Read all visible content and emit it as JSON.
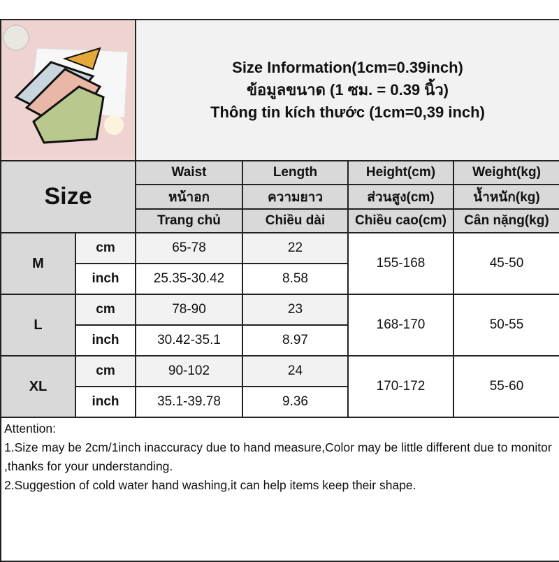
{
  "title": {
    "line1": "Size Information(1cm=0.39inch)",
    "line2": "ข้อมูลขนาด (1 ซม. = 0.39 นิ้ว)",
    "line3": "Thông tin kích thước (1cm=0,39 inch)"
  },
  "header": {
    "size_label": "Size",
    "columns": [
      {
        "en": "Waist",
        "th": "หน้าอก",
        "vi": "Trang chủ"
      },
      {
        "en": "Length",
        "th": "ความยาว",
        "vi": "Chiều dài"
      },
      {
        "en": "Height(cm)",
        "th": "ส่วนสูง(cm)",
        "vi": "Chiều cao(cm)"
      },
      {
        "en": "Weight(kg)",
        "th": "น้ำหนัก(kg)",
        "vi": "Cân nặng(kg)"
      }
    ]
  },
  "rows": [
    {
      "size": "M",
      "cm_label": "cm",
      "inch_label": "inch",
      "waist_cm": "65-78",
      "length_cm": "22",
      "waist_inch": "25.35-30.42",
      "length_inch": "8.58",
      "height": "155-168",
      "weight": "45-50"
    },
    {
      "size": "L",
      "cm_label": "cm",
      "inch_label": "inch",
      "waist_cm": "78-90",
      "length_cm": "23",
      "waist_inch": "30.42-35.1",
      "length_inch": "8.97",
      "height": "168-170",
      "weight": "50-55"
    },
    {
      "size": "XL",
      "cm_label": "cm",
      "inch_label": "inch",
      "waist_cm": "90-102",
      "length_cm": "24",
      "waist_inch": "35.1-39.78",
      "length_inch": "9.36",
      "height": "170-172",
      "weight": "55-60"
    }
  ],
  "notes": {
    "heading": "Attention:",
    "line1": "1.Size may be 2cm/1inch inaccuracy due to hand measure,Color may be little different due to monitor ,thanks for your understanding.",
    "line2": "2.Suggestion of cold water hand washing,it can help items keep their shape."
  }
}
